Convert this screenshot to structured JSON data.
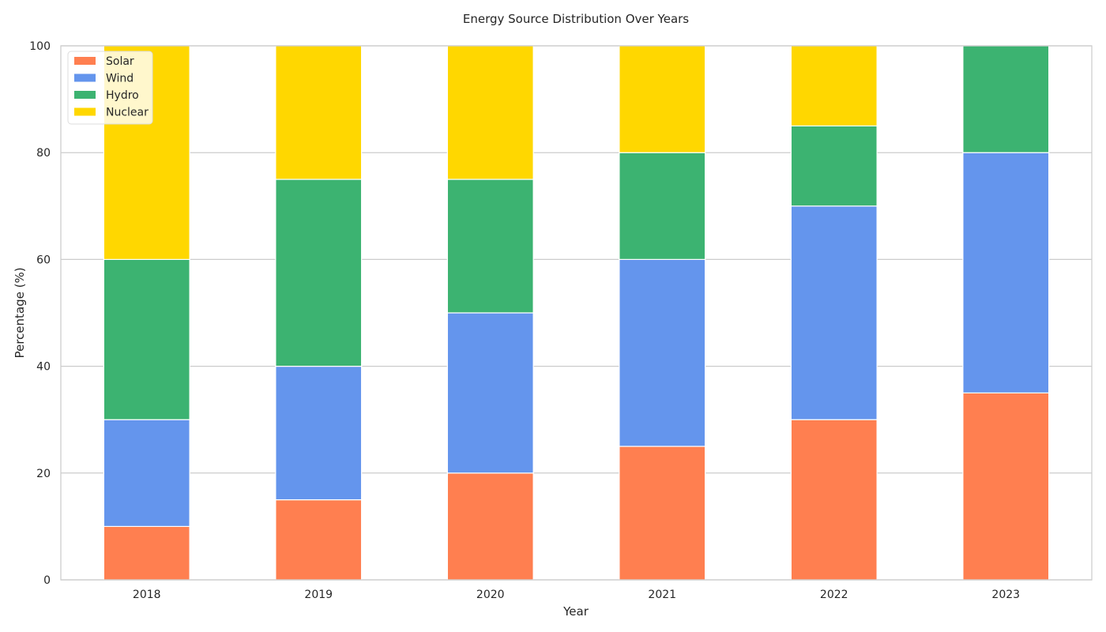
{
  "chart_data": {
    "type": "bar",
    "stacked": true,
    "title": "Energy Source Distribution Over Years",
    "xlabel": "Year",
    "ylabel": "Percentage (%)",
    "categories": [
      "2018",
      "2019",
      "2020",
      "2021",
      "2022",
      "2023"
    ],
    "series": [
      {
        "name": "Solar",
        "color": "#ff7f50",
        "values": [
          10,
          15,
          20,
          25,
          30,
          35
        ]
      },
      {
        "name": "Wind",
        "color": "#6495ed",
        "values": [
          20,
          25,
          30,
          35,
          40,
          45
        ]
      },
      {
        "name": "Hydro",
        "color": "#3cb371",
        "values": [
          30,
          35,
          25,
          20,
          15,
          20
        ]
      },
      {
        "name": "Nuclear",
        "color": "#ffd700",
        "values": [
          40,
          25,
          25,
          20,
          15,
          0
        ]
      }
    ],
    "ylim": [
      0,
      100
    ],
    "yticks": [
      0,
      20,
      40,
      60,
      80,
      100
    ],
    "grid": true,
    "legend_position": "top-left"
  }
}
